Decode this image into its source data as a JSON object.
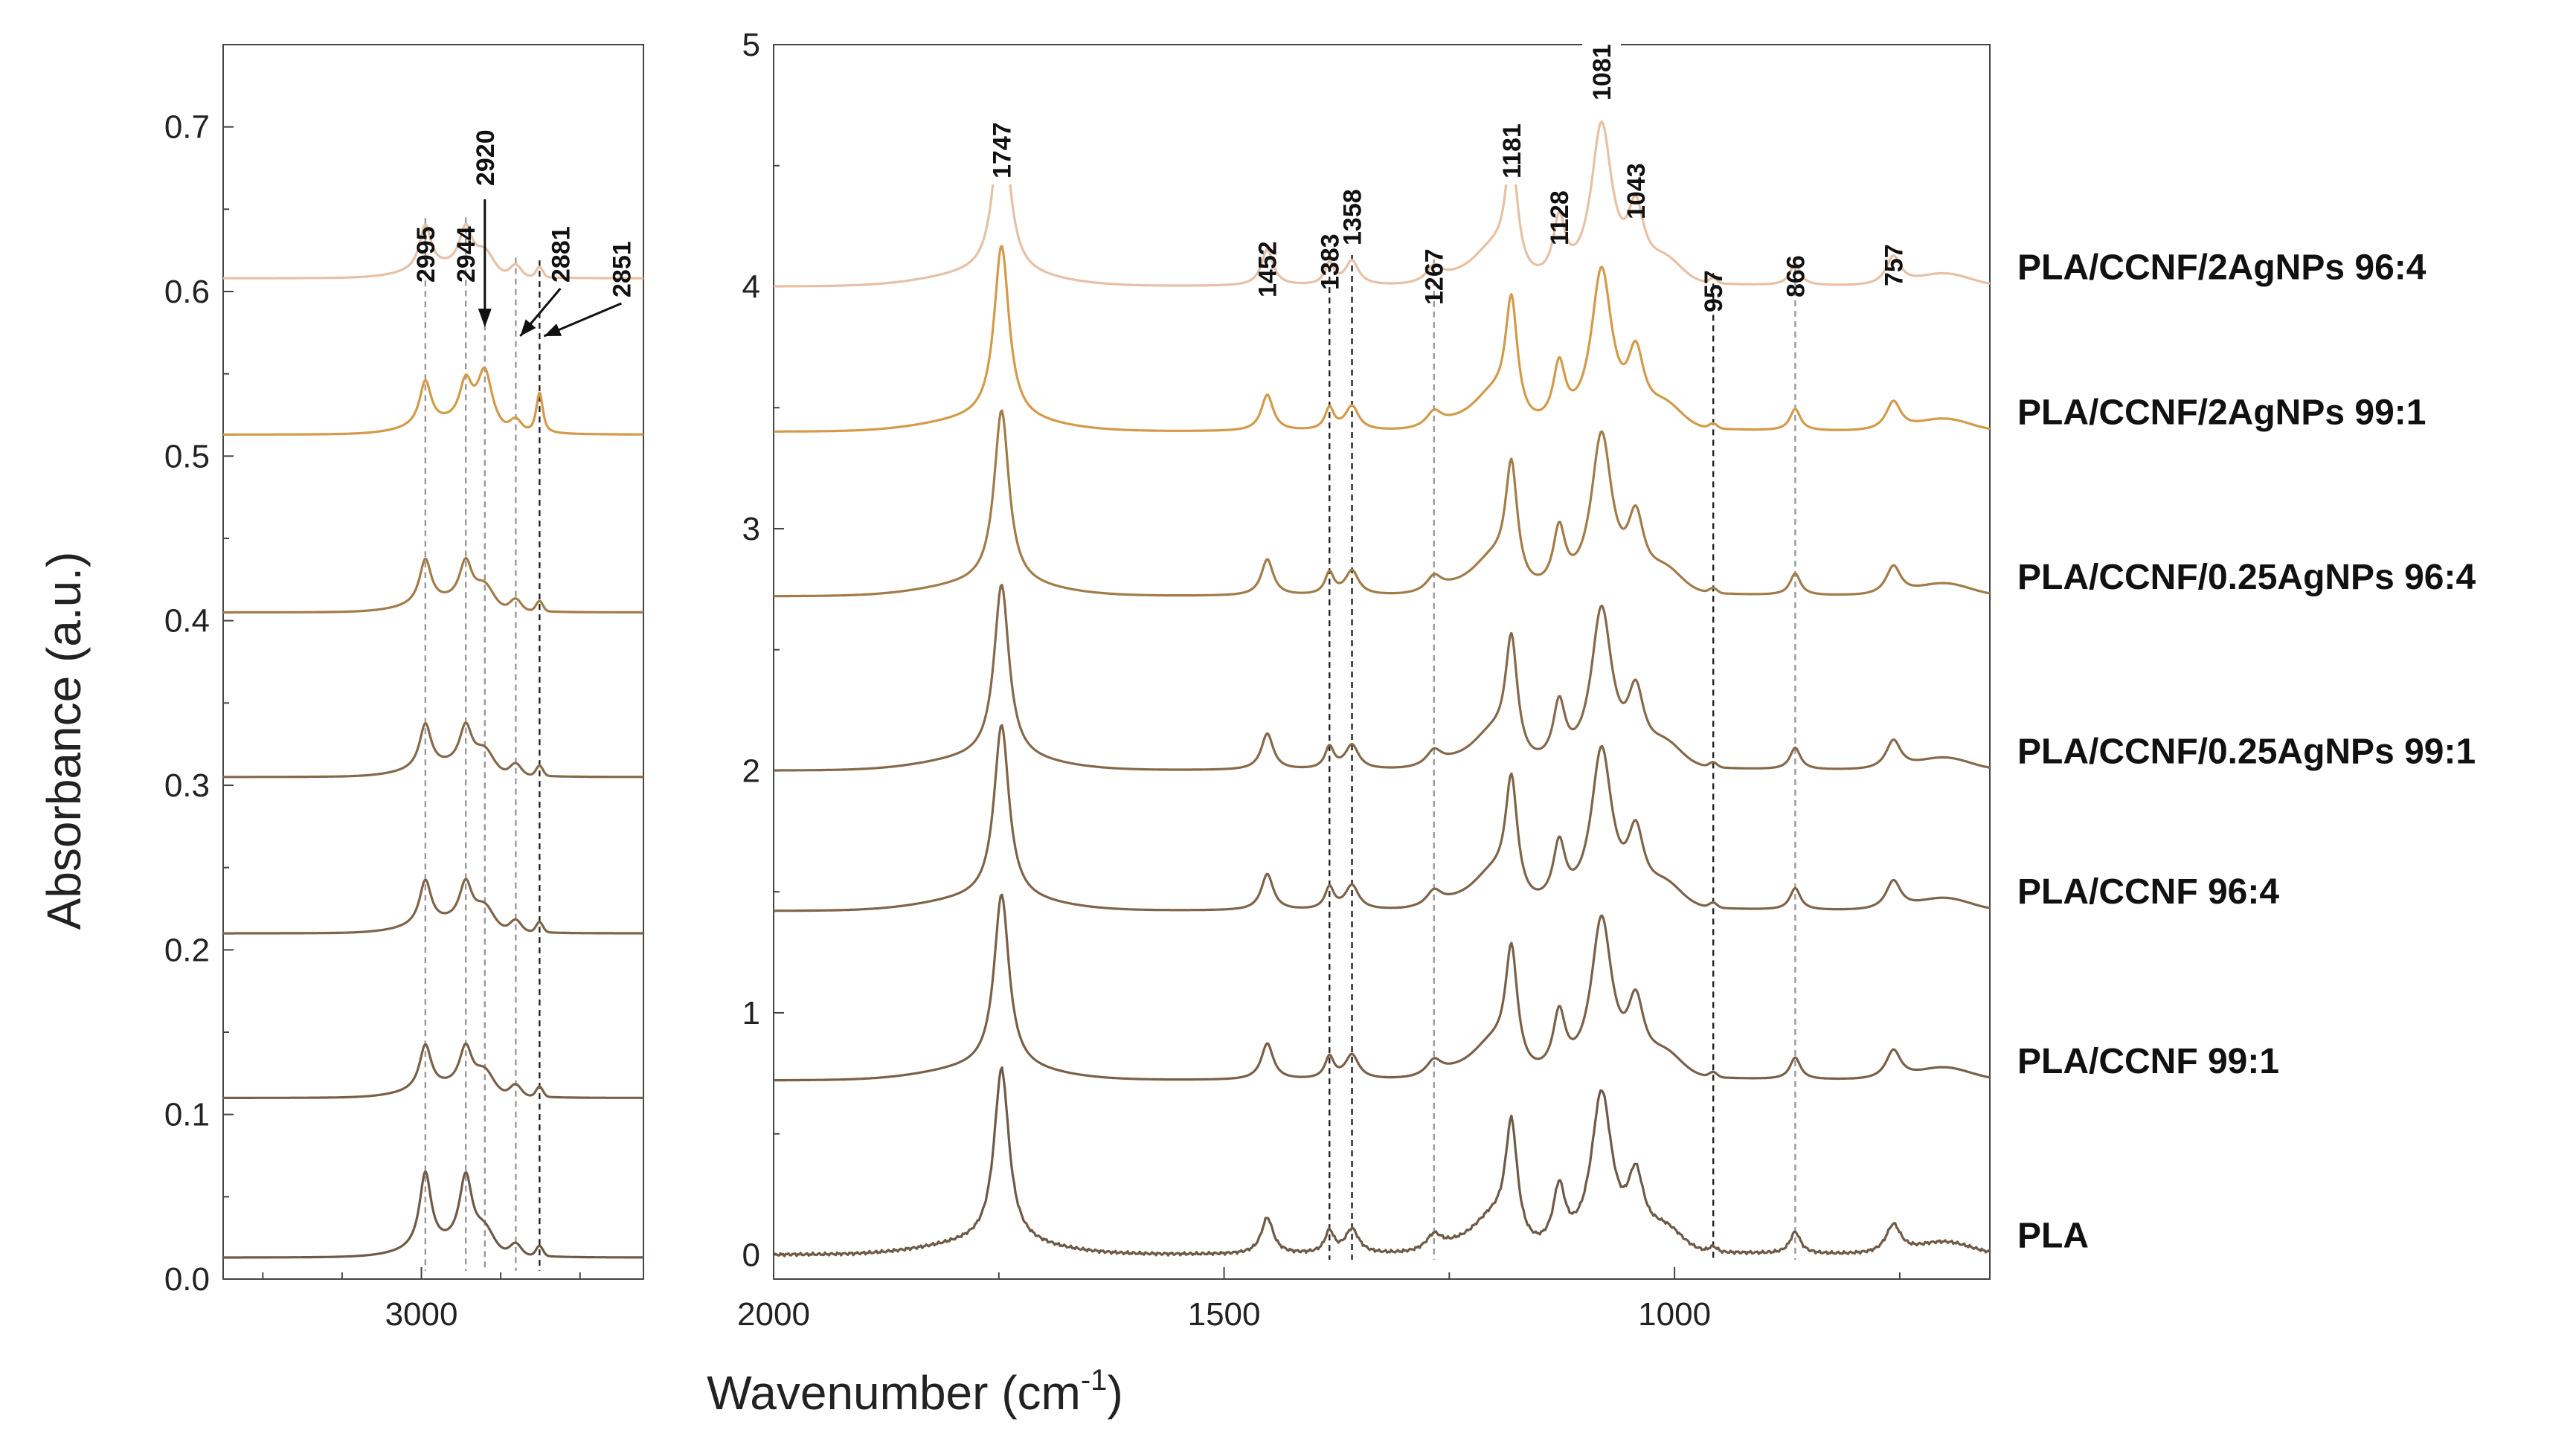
{
  "chart_data": {
    "type": "line",
    "ylabel": "Absorbance (a.u.)",
    "xlabel_main": "Wavenumber (cm",
    "xlabel_sup": "-1",
    "xlabel_close": ")",
    "panels": [
      {
        "id": "left",
        "xlim": [
          3250,
          2720
        ],
        "ylim": [
          0.0,
          0.75
        ],
        "x_ticks": [
          3000
        ],
        "x_minor_ticks": [
          3200,
          3100,
          2900,
          2800
        ],
        "y_ticks": [
          0.0,
          0.1,
          0.2,
          0.3,
          0.4,
          0.5,
          0.6,
          0.7
        ],
        "y_tick_labels": [
          "0.0",
          "0.1",
          "0.2",
          "0.3",
          "0.4",
          "0.5",
          "0.6",
          "0.7"
        ]
      },
      {
        "id": "right",
        "xlim": [
          2000,
          650
        ],
        "ylim": [
          -0.1,
          5.0
        ],
        "x_ticks": [
          2000,
          1500,
          1000
        ],
        "x_minor_ticks": [
          1750,
          1250,
          750
        ],
        "y_ticks": [
          0,
          1,
          2,
          3,
          4,
          5
        ],
        "y_tick_labels": [
          "0",
          "1",
          "2",
          "3",
          "4",
          "5"
        ]
      }
    ],
    "series": [
      {
        "name": "PLA",
        "color": "#6e5a46",
        "offset_left": 0.013,
        "offset_right": 0.0
      },
      {
        "name": "PLA/CCNF 99:1",
        "color": "#7a6048",
        "offset_left": 0.11,
        "offset_right": 0.72
      },
      {
        "name": "PLA/CCNF 96:4",
        "color": "#7e6448",
        "offset_left": 0.21,
        "offset_right": 1.42
      },
      {
        "name": "PLA/CCNF/0.25AgNPs 99:1",
        "color": "#86694a",
        "offset_left": 0.305,
        "offset_right": 2.0
      },
      {
        "name": "PLA/CCNF/0.25AgNPs 96:4",
        "color": "#a27c48",
        "offset_left": 0.405,
        "offset_right": 2.72
      },
      {
        "name": "PLA/CCNF/2AgNPs 99:1",
        "color": "#d39a4a",
        "offset_left": 0.513,
        "offset_right": 3.4
      },
      {
        "name": "PLA/CCNF/2AgNPs 96:4",
        "color": "#e8c0a4",
        "offset_left": 0.608,
        "offset_right": 4.0
      }
    ],
    "peaks_left": [
      {
        "label": "2995",
        "x": 2995,
        "line_color": "#9a9a9a"
      },
      {
        "label": "2944",
        "x": 2944,
        "line_color": "#9a9a9a"
      },
      {
        "label": "2920",
        "x": 2920,
        "line_color": "#9a9a9a"
      },
      {
        "label": "2881",
        "x": 2881,
        "line_color": "#9a9a9a"
      },
      {
        "label": "2851",
        "x": 2851,
        "line_color": "#222222"
      }
    ],
    "peaks_right": [
      {
        "label": "1747",
        "x": 1747,
        "dashed": false
      },
      {
        "label": "1452",
        "x": 1452,
        "dashed": false
      },
      {
        "label": "1383",
        "x": 1383,
        "dashed": true,
        "line_color": "#222222"
      },
      {
        "label": "1358",
        "x": 1358,
        "dashed": true,
        "line_color": "#222222"
      },
      {
        "label": "1267",
        "x": 1267,
        "dashed": true,
        "line_color": "#9a9a9a"
      },
      {
        "label": "1181",
        "x": 1181,
        "dashed": false
      },
      {
        "label": "1128",
        "x": 1128,
        "dashed": false
      },
      {
        "label": "1081",
        "x": 1081,
        "dashed": false
      },
      {
        "label": "1043",
        "x": 1043,
        "dashed": false
      },
      {
        "label": "957",
        "x": 957,
        "dashed": true,
        "line_color": "#222222"
      },
      {
        "label": "866",
        "x": 866,
        "dashed": true,
        "line_color": "#9a9a9a"
      },
      {
        "label": "757",
        "x": 757,
        "dashed": false
      }
    ]
  }
}
